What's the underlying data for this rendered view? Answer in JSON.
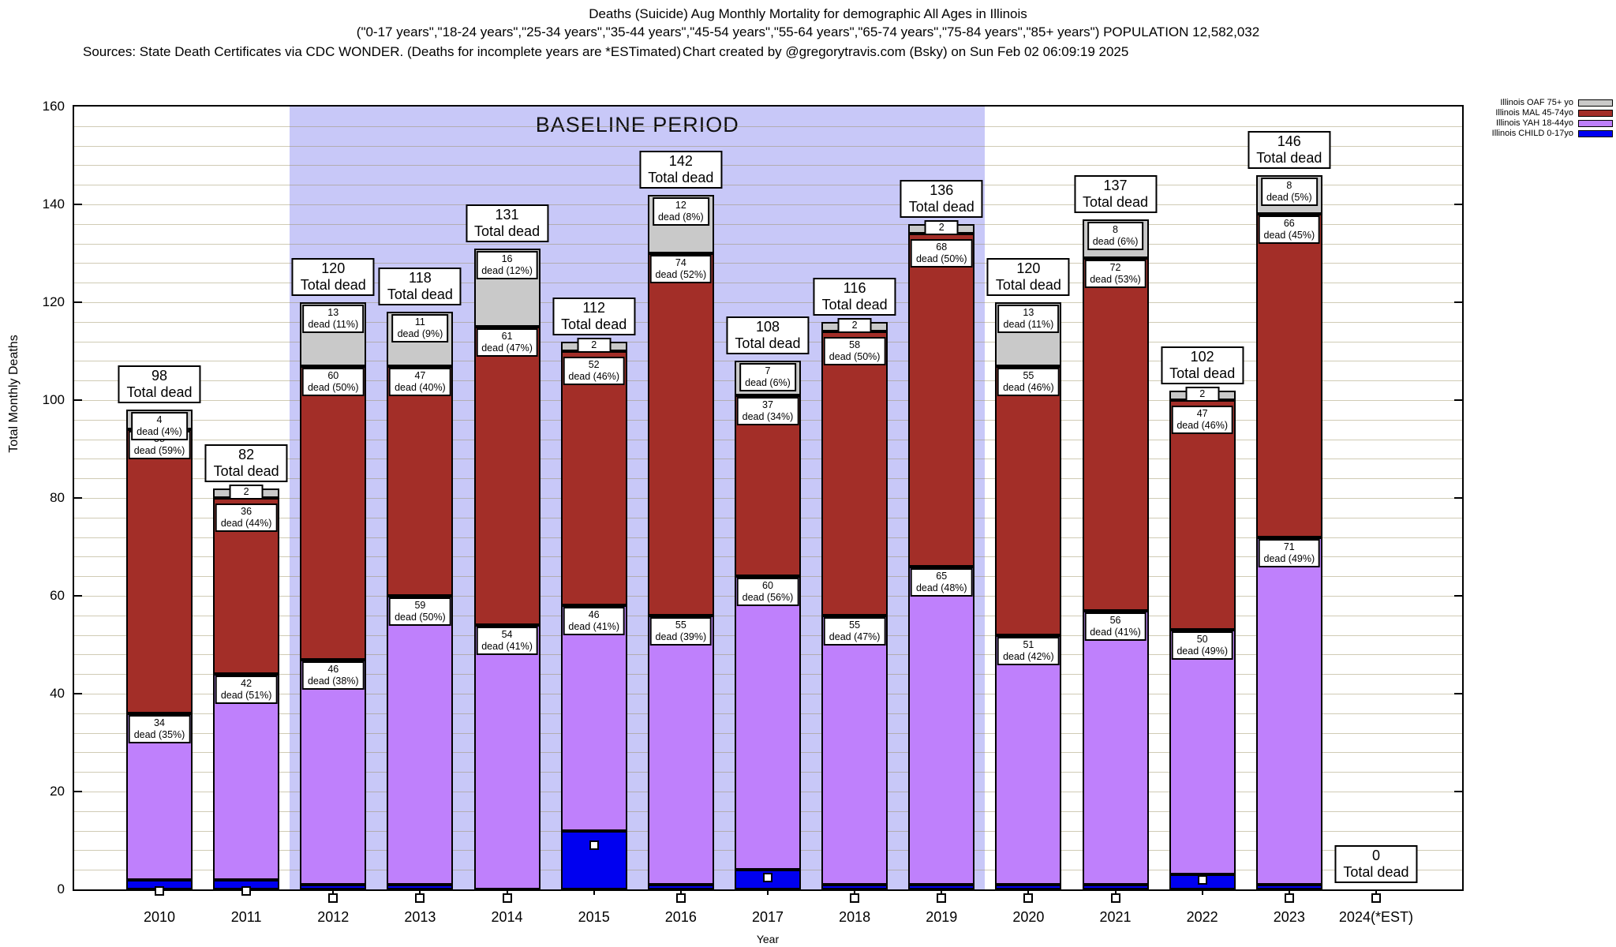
{
  "titles": {
    "line1": "Deaths (Suicide) Aug Monthly Mortality for demographic All Ages in Illinois",
    "line2": "(\"0-17 years\",\"18-24 years\",\"25-34 years\",\"35-44 years\",\"45-54 years\",\"55-64 years\",\"65-74 years\",\"75-84 years\",\"85+ years\") POPULATION 12,582,032",
    "line3_left": "Sources: State Death Certificates via CDC WONDER. (Deaths for incomplete years are *ESTimated)",
    "line3_right": "Chart created by @gregorytravis.com (Bsky) on Sun Feb 02 06:09:19 2025"
  },
  "chart_data": {
    "type": "bar",
    "stacked": true,
    "title": "Deaths (Suicide) Aug Monthly Mortality for demographic All Ages in Illinois",
    "xlabel": "Year",
    "ylabel": "Total Monthly Deaths",
    "ylim": [
      0,
      160
    ],
    "ytick_major": 20,
    "ytick_minor": 4,
    "grid": true,
    "legend_position": "top-right",
    "series_colors": {
      "child": "#0000f0",
      "yah": "#bf80fc",
      "mal": "#a32e28",
      "oaf": "#c9c9c9"
    },
    "legend": [
      {
        "label": "Illinois OAF 75+ yo",
        "series": "oaf",
        "color": "#c9c9c9"
      },
      {
        "label": "Illinois MAL 45-74yo",
        "series": "mal",
        "color": "#a32e28"
      },
      {
        "label": "Illinois YAH 18-44yo",
        "series": "yah",
        "color": "#bf80fc"
      },
      {
        "label": "Illinois CHILD 0-17yo",
        "series": "child",
        "color": "#0000f0"
      }
    ],
    "baseline_region": {
      "label": "BASELINE PERIOD",
      "from": "2012",
      "to": "2019"
    },
    "categories": [
      "2010",
      "2011",
      "2012",
      "2013",
      "2014",
      "2015",
      "2016",
      "2017",
      "2018",
      "2019",
      "2020",
      "2021",
      "2022",
      "2023",
      "2024(*EST)"
    ],
    "years": [
      {
        "year": "2010",
        "total": 98,
        "total_label": [
          "98",
          "Total dead"
        ],
        "marker": -0.4,
        "segments": [
          {
            "key": "child",
            "value": 2
          },
          {
            "key": "yah",
            "value": 34,
            "label": [
              "34",
              "dead (35%)"
            ]
          },
          {
            "key": "mal",
            "value": 58,
            "label": [
              "58",
              "dead (59%)"
            ]
          },
          {
            "key": "oaf",
            "value": 4,
            "label": [
              "4",
              "dead (4%)"
            ]
          }
        ]
      },
      {
        "year": "2011",
        "total": 82,
        "total_label": [
          "82",
          "Total dead"
        ],
        "marker": -0.4,
        "segments": [
          {
            "key": "child",
            "value": 2
          },
          {
            "key": "yah",
            "value": 42,
            "label": [
              "42",
              "dead (51%)"
            ]
          },
          {
            "key": "mal",
            "value": 36,
            "label": [
              "36",
              "dead (44%)"
            ]
          },
          {
            "key": "oaf",
            "value": 2,
            "label": [
              "2"
            ]
          }
        ]
      },
      {
        "year": "2012",
        "total": 120,
        "total_label": [
          "120",
          "Total dead"
        ],
        "marker": -1.8,
        "segments": [
          {
            "key": "child",
            "value": 1
          },
          {
            "key": "yah",
            "value": 46,
            "label": [
              "46",
              "dead (38%)"
            ]
          },
          {
            "key": "mal",
            "value": 60,
            "label": [
              "60",
              "dead (50%)"
            ]
          },
          {
            "key": "oaf",
            "value": 13,
            "label": [
              "13",
              "dead (11%)"
            ]
          }
        ]
      },
      {
        "year": "2013",
        "total": 118,
        "total_label": [
          "118",
          "Total dead"
        ],
        "marker": -1.8,
        "segments": [
          {
            "key": "child",
            "value": 1
          },
          {
            "key": "yah",
            "value": 59,
            "label": [
              "59",
              "dead (50%)"
            ]
          },
          {
            "key": "mal",
            "value": 47,
            "label": [
              "47",
              "dead (40%)"
            ]
          },
          {
            "key": "oaf",
            "value": 11,
            "label": [
              "11",
              "dead (9%)"
            ]
          }
        ]
      },
      {
        "year": "2014",
        "total": 131,
        "total_label": [
          "131",
          "Total dead"
        ],
        "marker": -1.8,
        "segments": [
          {
            "key": "child",
            "value": 0
          },
          {
            "key": "yah",
            "value": 54,
            "label": [
              "54",
              "dead (41%)"
            ]
          },
          {
            "key": "mal",
            "value": 61,
            "label": [
              "61",
              "dead (47%)"
            ]
          },
          {
            "key": "oaf",
            "value": 16,
            "label": [
              "16",
              "dead (12%)"
            ]
          }
        ]
      },
      {
        "year": "2015",
        "total": 112,
        "total_label": [
          "112",
          "Total dead"
        ],
        "marker": 9,
        "segments": [
          {
            "key": "child",
            "value": 12
          },
          {
            "key": "yah",
            "value": 46,
            "label": [
              "46",
              "dead (41%)"
            ]
          },
          {
            "key": "mal",
            "value": 52,
            "label": [
              "52",
              "dead (46%)"
            ]
          },
          {
            "key": "oaf",
            "value": 2,
            "label": [
              "2"
            ]
          }
        ]
      },
      {
        "year": "2016",
        "total": 142,
        "total_label": [
          "142",
          "Total dead"
        ],
        "marker": -1.8,
        "segments": [
          {
            "key": "child",
            "value": 1
          },
          {
            "key": "yah",
            "value": 55,
            "label": [
              "55",
              "dead (39%)"
            ]
          },
          {
            "key": "mal",
            "value": 74,
            "label": [
              "74",
              "dead (52%)"
            ]
          },
          {
            "key": "oaf",
            "value": 12,
            "label": [
              "12",
              "dead (8%)"
            ]
          }
        ]
      },
      {
        "year": "2017",
        "total": 108,
        "total_label": [
          "108",
          "Total dead"
        ],
        "marker": 2.5,
        "segments": [
          {
            "key": "child",
            "value": 4
          },
          {
            "key": "yah",
            "value": 60,
            "label": [
              "60",
              "dead (56%)"
            ]
          },
          {
            "key": "mal",
            "value": 37,
            "label": [
              "37",
              "dead (34%)"
            ]
          },
          {
            "key": "oaf",
            "value": 7,
            "label": [
              "7",
              "dead (6%)"
            ]
          }
        ]
      },
      {
        "year": "2018",
        "total": 116,
        "total_label": [
          "116",
          "Total dead"
        ],
        "marker": -1.8,
        "segments": [
          {
            "key": "child",
            "value": 1
          },
          {
            "key": "yah",
            "value": 55,
            "label": [
              "55",
              "dead (47%)"
            ]
          },
          {
            "key": "mal",
            "value": 58,
            "label": [
              "58",
              "dead (50%)"
            ]
          },
          {
            "key": "oaf",
            "value": 2,
            "label": [
              "2"
            ]
          }
        ]
      },
      {
        "year": "2019",
        "total": 136,
        "total_label": [
          "136",
          "Total dead"
        ],
        "marker": -1.8,
        "segments": [
          {
            "key": "child",
            "value": 1
          },
          {
            "key": "yah",
            "value": 65,
            "label": [
              "65",
              "dead (48%)"
            ]
          },
          {
            "key": "mal",
            "value": 68,
            "label": [
              "68",
              "dead (50%)"
            ]
          },
          {
            "key": "oaf",
            "value": 2,
            "label": [
              "2"
            ]
          }
        ]
      },
      {
        "year": "2020",
        "total": 120,
        "total_label": [
          "120",
          "Total dead"
        ],
        "marker": -1.8,
        "segments": [
          {
            "key": "child",
            "value": 1
          },
          {
            "key": "yah",
            "value": 51,
            "label": [
              "51",
              "dead (42%)"
            ]
          },
          {
            "key": "mal",
            "value": 55,
            "label": [
              "55",
              "dead (46%)"
            ]
          },
          {
            "key": "oaf",
            "value": 13,
            "label": [
              "13",
              "dead (11%)"
            ]
          }
        ]
      },
      {
        "year": "2021",
        "total": 137,
        "total_label": [
          "137",
          "Total dead"
        ],
        "marker": -1.8,
        "segments": [
          {
            "key": "child",
            "value": 1
          },
          {
            "key": "yah",
            "value": 56,
            "label": [
              "56",
              "dead (41%)"
            ]
          },
          {
            "key": "mal",
            "value": 72,
            "label": [
              "72",
              "dead (53%)"
            ]
          },
          {
            "key": "oaf",
            "value": 8,
            "label": [
              "8",
              "dead (6%)"
            ]
          }
        ]
      },
      {
        "year": "2022",
        "total": 102,
        "total_label": [
          "102",
          "Total dead"
        ],
        "marker": 2,
        "segments": [
          {
            "key": "child",
            "value": 3
          },
          {
            "key": "yah",
            "value": 50,
            "label": [
              "50",
              "dead (49%)"
            ]
          },
          {
            "key": "mal",
            "value": 47,
            "label": [
              "47",
              "dead (46%)"
            ]
          },
          {
            "key": "oaf",
            "value": 2,
            "label": [
              "2"
            ]
          }
        ]
      },
      {
        "year": "2023",
        "total": 146,
        "total_label": [
          "146",
          "Total dead"
        ],
        "marker": -1.8,
        "segments": [
          {
            "key": "child",
            "value": 1
          },
          {
            "key": "yah",
            "value": 71,
            "label": [
              "71",
              "dead (49%)"
            ]
          },
          {
            "key": "mal",
            "value": 66,
            "label": [
              "66",
              "dead (45%)"
            ]
          },
          {
            "key": "oaf",
            "value": 8,
            "label": [
              "8",
              "dead (5%)"
            ]
          }
        ]
      },
      {
        "year": "2024(*EST)",
        "total": 0,
        "total_label": [
          "0",
          "Total dead"
        ],
        "marker": -1.8,
        "segments": [
          {
            "key": "child",
            "value": 0
          },
          {
            "key": "yah",
            "value": 0
          },
          {
            "key": "mal",
            "value": 0
          },
          {
            "key": "oaf",
            "value": 0
          }
        ]
      }
    ]
  }
}
